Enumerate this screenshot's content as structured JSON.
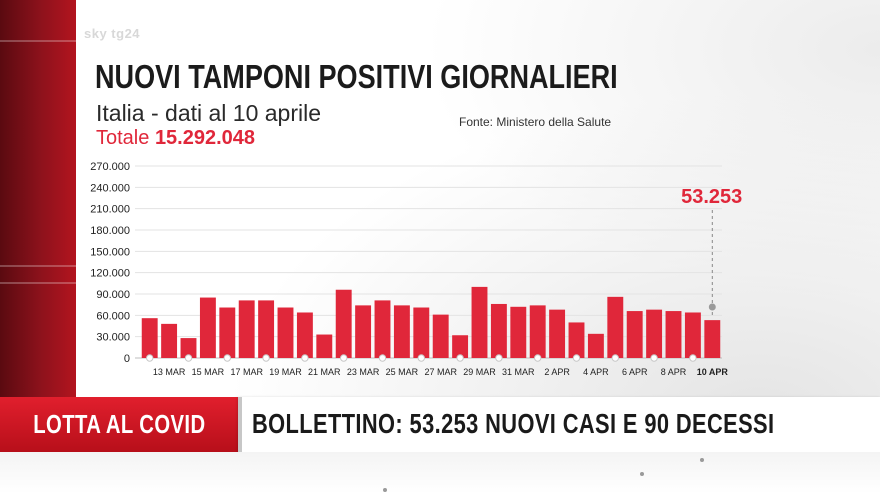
{
  "logo": "sky tg24",
  "title": "NUOVI TAMPONI POSITIVI GIORNALIERI",
  "subtitle": "Italia - dati al 10 aprile",
  "total_label": "Totale",
  "total_value": "15.292.048",
  "source": "Fonte: Ministero della Salute",
  "colors": {
    "bar": "#e0273a",
    "accent": "#e0273a",
    "banner_red": "#d41a27",
    "text": "#1b1b1b"
  },
  "chart_data": {
    "type": "bar",
    "title": "NUOVI TAMPONI POSITIVI GIORNALIERI",
    "xlabel": "",
    "ylabel": "",
    "ylim": [
      0,
      270000
    ],
    "yticks": [
      "0",
      "30.000",
      "60.000",
      "90.000",
      "120.000",
      "150.000",
      "180.000",
      "210.000",
      "240.000",
      "270.000"
    ],
    "xtick_labels": [
      "13 MAR",
      "15 MAR",
      "17 MAR",
      "19 MAR",
      "21 MAR",
      "23 MAR",
      "25 MAR",
      "27 MAR",
      "29 MAR",
      "31 MAR",
      "2 APR",
      "4 APR",
      "6 APR",
      "8 APR",
      "10 APR"
    ],
    "grid": true,
    "values": [
      56000,
      48000,
      28000,
      85000,
      71000,
      81000,
      81000,
      71000,
      64000,
      33000,
      96000,
      74000,
      81000,
      74000,
      71000,
      61000,
      32000,
      100000,
      76000,
      72000,
      74000,
      68000,
      50000,
      34000,
      86000,
      66000,
      68000,
      66000,
      64000,
      53253
    ],
    "highlight_label": "53.253"
  },
  "banner": {
    "tag": "LOTTA AL COVID",
    "headline": "BOLLETTINO: 53.253 NUOVI CASI E 90 DECESSI"
  }
}
